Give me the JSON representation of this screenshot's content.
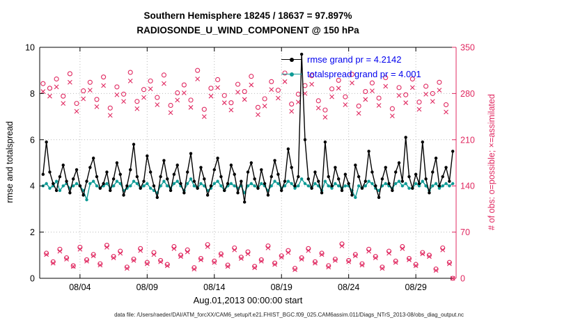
{
  "title_line1": "Southern Hemisphere 18245 / 18637 = 97.897%",
  "title_line2": "RADIOSONDE_U_WIND_COMPONENT @ 150 hPa",
  "xlabel": "Aug.01,2013 00:00:00 start",
  "ylabel_left": "rmse and totalspread",
  "ylabel_right": "# of obs: o=possible; ×=assimilated",
  "caption": "data file: /Users/raeder/DAI/ATM_forcXX/CAM6_setup/f.e21.FHIST_BGC.f09_025.CAM6assim.011/Diags_NTrS_2013-08/obs_diag_output.nc",
  "legend": {
    "rmse": "rmse grand pr = 4.2142",
    "totalspread": "totalspread grand pr = 4.001"
  },
  "colors": {
    "rmse": "#000000",
    "totalspread": "#0f9b96",
    "obs": "#e02860",
    "legend_text": "#0000ee",
    "grid": "#b9b9b9"
  },
  "chart_data": {
    "type": "line",
    "grid": true,
    "legend_position": "upper right",
    "x_start": 1.25,
    "x_step": 0.25,
    "x_axis": {
      "range": [
        1,
        32
      ],
      "ticks": [
        {
          "t": 4,
          "label": "08/04"
        },
        {
          "t": 9,
          "label": "08/09"
        },
        {
          "t": 14,
          "label": "08/14"
        },
        {
          "t": 19,
          "label": "08/19"
        },
        {
          "t": 24,
          "label": "08/24"
        },
        {
          "t": 29,
          "label": "08/29"
        }
      ]
    },
    "y_axis_left": {
      "range": [
        0,
        10
      ],
      "ticks": [
        0,
        2,
        4,
        6,
        8,
        10
      ]
    },
    "y_axis_right": {
      "range": [
        0,
        350
      ],
      "ticks": [
        0,
        70,
        140,
        210,
        280,
        350
      ]
    },
    "grand_pr": {
      "rmse": 4.2142,
      "totalspread": 4.001
    },
    "series_meta": [
      {
        "name": "rmse",
        "axis": "left",
        "style": "line+filled-dot",
        "color_key": "rmse"
      },
      {
        "name": "totalspread",
        "axis": "left",
        "style": "line+filled-dot",
        "color_key": "totalspread"
      },
      {
        "name": "obs_possible",
        "axis": "right",
        "style": "open-circle",
        "color_key": "obs"
      },
      {
        "name": "obs_assimilated",
        "axis": "right",
        "style": "x-cross",
        "color_key": "obs"
      }
    ],
    "rmse": [
      4.5,
      5.9,
      4.6,
      4.1,
      3.8,
      4.4,
      4.9,
      4.2,
      3.7,
      4.3,
      4.7,
      4.0,
      3.6,
      4.2,
      4.8,
      5.2,
      4.4,
      3.9,
      4.1,
      4.6,
      3.8,
      4.3,
      5.0,
      4.5,
      3.6,
      4.0,
      4.7,
      5.8,
      4.4,
      3.9,
      4.2,
      5.3,
      4.6,
      4.0,
      3.5,
      4.4,
      5.1,
      4.3,
      3.8,
      4.5,
      4.9,
      4.1,
      3.7,
      4.6,
      5.4,
      4.2,
      3.9,
      4.8,
      4.3,
      3.6,
      4.0,
      4.7,
      5.2,
      4.4,
      3.8,
      4.1,
      4.9,
      4.5,
      3.7,
      4.2,
      3.3,
      4.6,
      5.0,
      4.3,
      3.9,
      4.7,
      4.1,
      3.6,
      4.4,
      5.1,
      4.5,
      3.8,
      4.2,
      5.6,
      4.8,
      4.0,
      4.4,
      9.7,
      6.0,
      4.3,
      3.9,
      4.6,
      4.2,
      3.7,
      5.9,
      4.4,
      4.0,
      4.8,
      4.3,
      3.8,
      4.5,
      4.1,
      3.6,
      4.9,
      4.4,
      3.9,
      4.2,
      5.5,
      4.6,
      4.0,
      3.5,
      4.3,
      4.8,
      4.1,
      3.8,
      4.6,
      5.0,
      4.2,
      6.1,
      4.4,
      3.9,
      4.5,
      4.1,
      5.9,
      4.3,
      3.7,
      4.6,
      5.2,
      4.0,
      4.4,
      4.8,
      4.2,
      5.5
    ],
    "totalspread": [
      4.0,
      4.1,
      3.9,
      4.0,
      4.2,
      3.8,
      4.0,
      4.1,
      3.9,
      4.0,
      4.1,
      4.0,
      3.8,
      3.4,
      4.1,
      4.2,
      4.0,
      3.9,
      4.0,
      4.1,
      3.9,
      4.0,
      4.2,
      4.1,
      3.8,
      3.9,
      4.0,
      4.2,
      4.1,
      3.9,
      4.0,
      4.1,
      3.9,
      3.8,
      3.7,
      4.0,
      4.2,
      4.0,
      3.9,
      4.1,
      4.2,
      4.0,
      3.8,
      4.1,
      4.3,
      4.0,
      3.9,
      4.1,
      4.0,
      3.8,
      3.9,
      4.1,
      4.2,
      4.0,
      3.8,
      4.0,
      4.1,
      4.0,
      3.9,
      4.0,
      3.7,
      4.0,
      4.1,
      4.0,
      3.9,
      4.1,
      4.0,
      3.8,
      4.0,
      4.2,
      4.1,
      3.9,
      4.0,
      4.2,
      4.1,
      3.9,
      4.0,
      4.3,
      4.1,
      4.0,
      3.9,
      4.1,
      4.0,
      3.8,
      4.2,
      4.0,
      3.9,
      4.1,
      4.0,
      3.9,
      4.0,
      4.0,
      3.8,
      3.5,
      4.0,
      3.9,
      4.0,
      4.2,
      4.1,
      3.9,
      3.8,
      4.0,
      4.1,
      4.0,
      3.9,
      4.1,
      4.2,
      4.0,
      4.1,
      3.9,
      3.9,
      4.1,
      4.0,
      4.2,
      4.0,
      3.8,
      4.0,
      4.1,
      3.9,
      4.0,
      4.1,
      4.0,
      4.1
    ],
    "obs_possible": [
      295,
      38,
      288,
      25,
      302,
      44,
      276,
      31,
      310,
      19,
      265,
      47,
      284,
      28,
      297,
      36,
      271,
      22,
      305,
      50,
      258,
      33,
      290,
      41,
      279,
      17,
      312,
      29,
      268,
      45,
      286,
      24,
      299,
      39,
      274,
      27,
      308,
      21,
      262,
      48,
      281,
      35,
      293,
      43,
      270,
      16,
      315,
      30,
      256,
      51,
      288,
      26,
      301,
      37,
      277,
      20,
      266,
      46,
      294,
      32,
      283,
      40,
      306,
      18,
      259,
      28,
      272,
      49,
      298,
      23,
      285,
      34,
      311,
      42,
      264,
      15,
      279,
      31,
      292,
      45,
      307,
      25,
      269,
      38,
      255,
      19,
      287,
      29,
      300,
      52,
      275,
      27,
      309,
      36,
      261,
      22,
      283,
      44,
      296,
      33,
      273,
      17,
      304,
      41,
      257,
      26,
      289,
      48,
      278,
      30,
      302,
      21,
      267,
      39,
      291,
      35,
      280,
      14,
      297,
      46,
      263,
      24,
      0
    ],
    "obs_assimilated": [
      283,
      36,
      276,
      23,
      290,
      41,
      265,
      29,
      297,
      18,
      253,
      44,
      272,
      26,
      285,
      34,
      260,
      20,
      292,
      47,
      247,
      31,
      278,
      38,
      268,
      15,
      299,
      27,
      257,
      42,
      274,
      22,
      287,
      36,
      263,
      25,
      295,
      19,
      251,
      45,
      270,
      33,
      281,
      40,
      259,
      14,
      302,
      28,
      245,
      48,
      276,
      24,
      289,
      35,
      266,
      18,
      255,
      43,
      282,
      30,
      271,
      37,
      293,
      16,
      248,
      26,
      261,
      46,
      286,
      21,
      273,
      32,
      298,
      39,
      253,
      13,
      267,
      29,
      280,
      42,
      294,
      23,
      258,
      36,
      244,
      17,
      275,
      27,
      288,
      49,
      263,
      25,
      296,
      34,
      250,
      20,
      271,
      41,
      284,
      31,
      262,
      15,
      291,
      38,
      246,
      24,
      277,
      45,
      266,
      28,
      289,
      19,
      256,
      37,
      279,
      33,
      268,
      12,
      285,
      43,
      252,
      22,
      0
    ]
  }
}
